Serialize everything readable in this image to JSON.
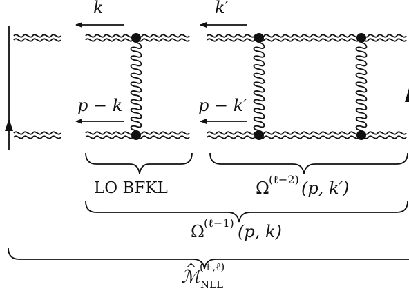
{
  "labels": {
    "momentum_k": "k",
    "momentum_kprime": "k′",
    "momentum_p_minus_k": "p − k",
    "momentum_p_minus_kprime": "p − k′",
    "lo_bfkl": "LO BFKL",
    "omega_inner_base": "Ω",
    "omega_inner_sup": "(ℓ−2)",
    "omega_inner_args": "(p, k′)",
    "omega_outer_base": "Ω",
    "omega_outer_sup": "(ℓ−1)",
    "omega_outer_args": "(p, k)",
    "m_base": "ℳ",
    "m_hat": "^",
    "m_sup": "(+,ℓ)",
    "m_sub": "NLL"
  }
}
